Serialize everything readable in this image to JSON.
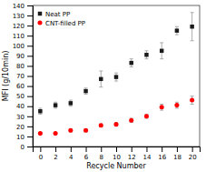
{
  "chart_data": {
    "type": "scatter",
    "xlabel": "Recycle Number",
    "ylabel": "MFI (g/10min)",
    "x": [
      0,
      2,
      4,
      6,
      8,
      10,
      12,
      14,
      16,
      18,
      20
    ],
    "series": [
      {
        "name": "Neat PP",
        "color": "#1a1a1a",
        "marker": "square",
        "values": [
          35,
          41,
          43,
          55,
          67,
          69,
          83,
          91,
          95,
          115,
          119
        ],
        "errors": [
          3,
          3,
          3,
          3,
          8,
          4,
          4,
          4,
          8,
          4,
          14
        ]
      },
      {
        "name": "CNT-filled PP",
        "color": "#ff0000",
        "marker": "circle",
        "values": [
          13,
          13,
          16,
          16,
          21,
          22,
          26,
          30,
          39,
          41,
          46
        ],
        "errors": [
          1,
          1,
          1.5,
          1.5,
          1.5,
          1.5,
          2,
          2,
          3,
          3,
          4
        ]
      }
    ],
    "xlim": [
      -1,
      21
    ],
    "ylim": [
      0,
      140
    ],
    "xticks": [
      0,
      2,
      4,
      6,
      8,
      10,
      12,
      14,
      16,
      18,
      20
    ],
    "yticks": [
      0,
      10,
      20,
      30,
      40,
      50,
      60,
      70,
      80,
      90,
      100,
      110,
      120,
      130,
      140
    ],
    "grid": false,
    "legend": "upper left"
  }
}
